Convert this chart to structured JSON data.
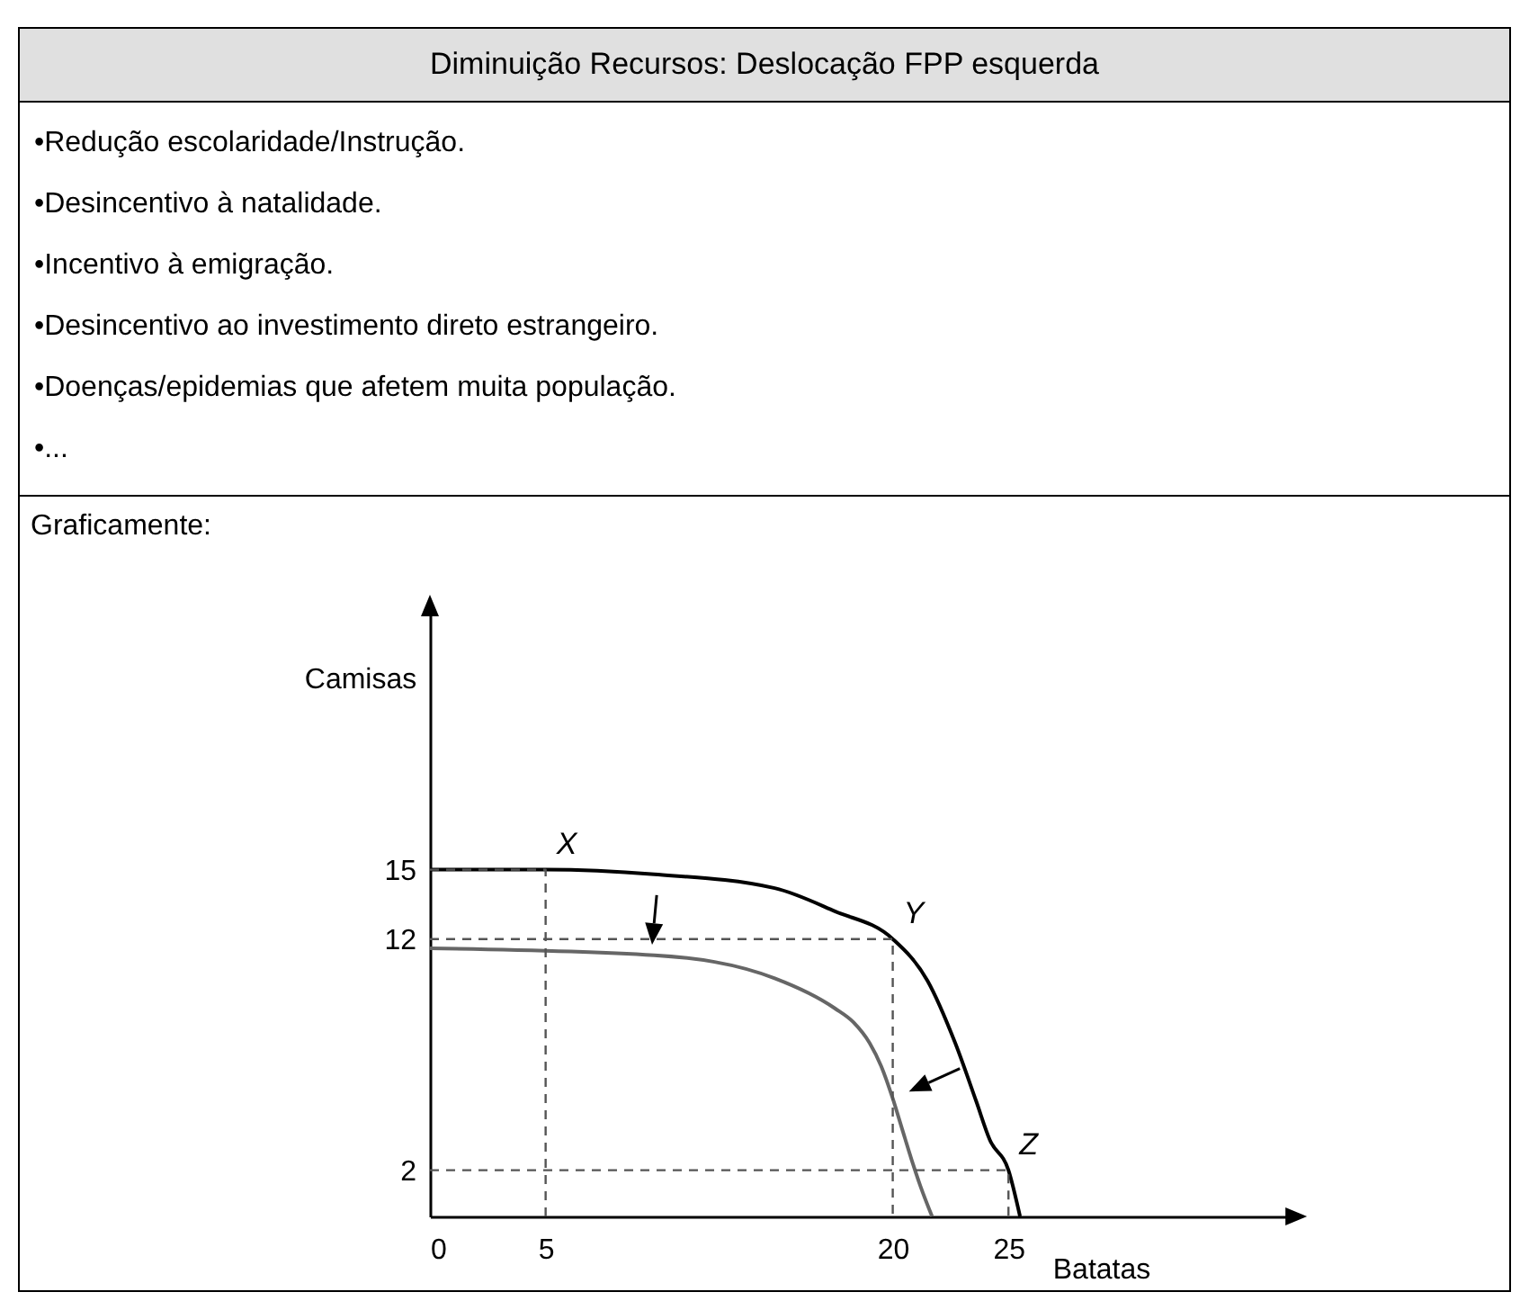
{
  "chart_data": {
    "type": "line",
    "title": "Diminuição Recursos: Deslocação FPP esquerda",
    "subtitle": "Graficamente:",
    "xlabel": "Batatas",
    "ylabel": "Camisas",
    "xlim": [
      0,
      37
    ],
    "ylim": [
      0,
      26
    ],
    "xticks": [
      0,
      5,
      20,
      25
    ],
    "yticks": [
      2,
      12,
      15
    ],
    "series": [
      {
        "color": "#000000",
        "x": [
          0,
          5,
          9.7,
          14.9,
          17.5,
          20,
          21.5,
          22.7,
          23.6,
          24.2,
          25,
          25.5
        ],
        "values": [
          15,
          15,
          14.8,
          14.2,
          13.2,
          12,
          10.2,
          7.5,
          5,
          3.3,
          2,
          0
        ]
      },
      {
        "color": "#666666",
        "x": [
          0,
          9.7,
          14.9,
          17.5,
          18.3,
          19,
          19.5,
          20,
          20.4,
          20.8,
          21.2,
          21.7
        ],
        "values": [
          11.6,
          11.3,
          10.3,
          9,
          8.4,
          7.5,
          6.5,
          5.1,
          3.8,
          2.5,
          1.3,
          0
        ]
      },
      {
        "color": "#555555",
        "line_style": "dashed",
        "x": [
          0,
          5,
          5
        ],
        "values": [
          15,
          15,
          0
        ]
      },
      {
        "color": "#555555",
        "line_style": "dashed",
        "x": [
          0,
          20,
          20
        ],
        "values": [
          12,
          12,
          0
        ]
      },
      {
        "color": "#555555",
        "line_style": "dashed",
        "x": [
          0,
          25,
          25
        ],
        "values": [
          2,
          2,
          0
        ]
      }
    ],
    "annotations": [
      "•Redução escolaridade/Instrução.",
      "•Desincentivo à natalidade.",
      "•Incentivo à emigração.",
      "•Desincentivo ao investimento direto estrangeiro.",
      "•Doenças/epidemias que afetem muita população.",
      "•...",
      {
        "text": "X",
        "x": 5,
        "y": 15
      },
      {
        "text": "Y",
        "x": 20,
        "y": 12
      },
      {
        "text": "Z",
        "x": 25,
        "y": 2
      }
    ]
  }
}
